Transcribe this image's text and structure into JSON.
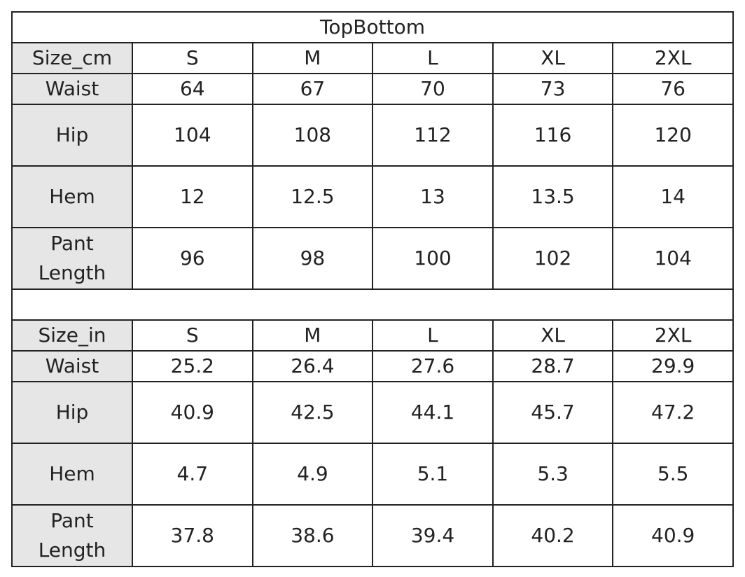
{
  "title": "TopBottom",
  "tables": [
    {
      "header": [
        "Size_cm",
        "S",
        "M",
        "L",
        "XL",
        "2XL"
      ],
      "rows": [
        [
          "Waist",
          "64",
          "67",
          "70",
          "73",
          "76"
        ],
        [
          "Hip",
          "104",
          "108",
          "112",
          "116",
          "120"
        ],
        [
          "Hem",
          "12",
          "12.5",
          "13",
          "13.5",
          "14"
        ],
        [
          "Pant Length",
          "96",
          "98",
          "100",
          "102",
          "104"
        ]
      ]
    },
    {
      "header": [
        "Size_in",
        "S",
        "M",
        "L",
        "XL",
        "2XL"
      ],
      "rows": [
        [
          "Waist",
          "25.2",
          "26.4",
          "27.6",
          "28.7",
          "29.9"
        ],
        [
          "Hip",
          "40.9",
          "42.5",
          "44.1",
          "45.7",
          "47.2"
        ],
        [
          "Hem",
          "4.7",
          "4.9",
          "5.1",
          "5.3",
          "5.5"
        ],
        [
          "Pant Length",
          "37.8",
          "38.6",
          "39.4",
          "40.2",
          "40.9"
        ]
      ]
    }
  ]
}
